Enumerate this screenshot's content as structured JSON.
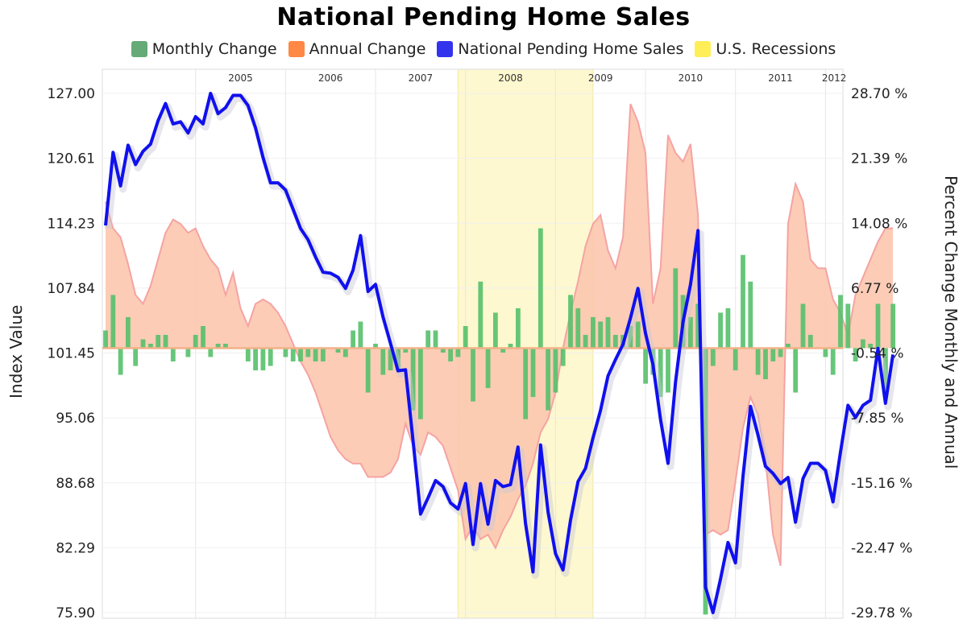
{
  "chart_data": {
    "type": "bar",
    "title": "National Pending Home Sales",
    "left_axis_label": "Index Value",
    "right_axis_label": "Percent Change Monthly and Annual",
    "left_ticks": [
      "127.00",
      "120.61",
      "114.23",
      "107.84",
      "101.45",
      "95.06",
      "88.68",
      "82.29",
      "75.90"
    ],
    "right_ticks": [
      "28.70 %",
      "21.39 %",
      "14.08 %",
      "6.77 %",
      "-0.54 %",
      "-7.85 %",
      "-15.16 %",
      "-22.47 %",
      "-29.78 %"
    ],
    "left_ylim": [
      75.9,
      127.0
    ],
    "right_ylim": [
      -29.78,
      28.7
    ],
    "year_labels": [
      "2005",
      "2006",
      "2007",
      "2008",
      "2009",
      "2010",
      "2011",
      "2012"
    ],
    "legend": [
      {
        "name": "Monthly Change",
        "color": "#66aa77"
      },
      {
        "name": "Annual Change",
        "color": "#ff8844"
      },
      {
        "name": "National Pending Home Sales",
        "color": "#3333ee"
      },
      {
        "name": "U.S. Recessions",
        "color": "#ffee55"
      }
    ],
    "recession": {
      "start": "2007-12",
      "end": "2009-06"
    },
    "x_start": "2004-01",
    "x_end": "2012-03",
    "series": [
      {
        "name": "National Pending Home Sales",
        "axis": "left",
        "values": [
          114.0,
          121.2,
          117.9,
          121.9,
          120.0,
          121.3,
          122.0,
          124.3,
          126.0,
          124.0,
          124.2,
          123.1,
          124.7,
          124.0,
          127.0,
          125.0,
          125.6,
          126.8,
          126.8,
          125.8,
          123.6,
          120.7,
          118.2,
          118.2,
          117.5,
          115.6,
          113.7,
          112.6,
          110.9,
          109.4,
          109.3,
          108.9,
          107.8,
          109.6,
          113.0,
          107.5,
          108.2,
          105.0,
          102.4,
          99.7,
          99.8,
          92.8,
          85.6,
          87.2,
          88.9,
          88.3,
          86.7,
          86.1,
          88.6,
          82.6,
          88.6,
          84.6,
          88.9,
          88.3,
          88.5,
          92.2,
          84.7,
          79.9,
          92.4,
          85.8,
          81.7,
          80.1,
          85.0,
          88.8,
          90.1,
          93.1,
          95.8,
          99.2,
          100.8,
          102.3,
          104.9,
          107.8,
          103.4,
          100.3,
          94.9,
          90.6,
          98.6,
          104.5,
          108.2,
          113.5,
          78.4,
          75.9,
          79.2,
          82.8,
          80.8,
          89.3,
          96.2,
          93.4,
          90.3,
          89.6,
          88.6,
          89.2,
          84.8,
          89.1,
          90.6,
          90.6,
          89.9,
          86.8,
          91.7,
          96.3,
          95.1,
          96.3,
          96.8,
          101.9,
          96.5,
          101.3
        ]
      },
      {
        "name": "Monthly Change",
        "axis": "right",
        "values": [
          2.0,
          6.0,
          -3.0,
          3.5,
          -2.0,
          1.0,
          0.5,
          1.5,
          1.5,
          -1.5,
          0.0,
          -1.0,
          1.5,
          2.5,
          -1.0,
          0.5,
          0.5,
          0.0,
          0.0,
          -1.5,
          -2.5,
          -2.5,
          -2.0,
          0.0,
          -1.0,
          -1.5,
          -1.5,
          -1.0,
          -1.5,
          -1.5,
          0.0,
          -0.5,
          -1.0,
          2.0,
          3.0,
          -5.0,
          0.5,
          -3.0,
          -2.5,
          -2.5,
          -0.5,
          -7.0,
          -8.0,
          2.0,
          2.0,
          -0.5,
          -1.5,
          -1.0,
          2.5,
          -6.0,
          7.5,
          -4.5,
          4.0,
          -0.5,
          0.5,
          4.5,
          -8.0,
          -5.5,
          13.5,
          -7.0,
          -5.0,
          -2.0,
          6.0,
          4.5,
          1.5,
          3.5,
          3.0,
          3.5,
          1.5,
          1.5,
          2.5,
          3.0,
          -4.0,
          -3.0,
          -5.5,
          -5.0,
          9.0,
          6.0,
          3.5,
          5.0,
          -30.0,
          -2.0,
          4.0,
          4.5,
          -2.5,
          10.5,
          7.5,
          -3.0,
          -3.5,
          -1.5,
          -1.0,
          0.5,
          -5.0,
          5.0,
          1.5,
          0.0,
          -1.0,
          -3.0,
          6.0,
          5.0,
          -1.5,
          1.0,
          0.5,
          5.0,
          -5.5,
          5.0
        ]
      },
      {
        "name": "Annual Change",
        "axis": "right",
        "values": [
          16.5,
          13.5,
          12.5,
          9.5,
          6.0,
          5.0,
          7.0,
          10.0,
          13.0,
          14.5,
          14.0,
          13.0,
          13.5,
          11.5,
          10.0,
          9.0,
          6.0,
          8.5,
          4.5,
          2.5,
          5.0,
          5.5,
          5.0,
          4.0,
          2.5,
          0.5,
          -1.5,
          -3.0,
          -5.0,
          -7.5,
          -10.0,
          -11.5,
          -12.5,
          -13.0,
          -13.0,
          -14.5,
          -14.5,
          -14.5,
          -14.0,
          -12.5,
          -8.5,
          -11.0,
          -12.0,
          -9.5,
          -10.0,
          -11.0,
          -13.5,
          -16.0,
          -21.5,
          -20.0,
          -21.5,
          -21.0,
          -22.5,
          -20.5,
          -19.0,
          -17.0,
          -15.5,
          -13.0,
          -9.5,
          -8.0,
          -5.0,
          0.0,
          4.0,
          7.5,
          11.5,
          14.0,
          15.0,
          11.0,
          9.0,
          12.5,
          27.5,
          25.5,
          22.0,
          5.0,
          9.0,
          24.0,
          22.0,
          21.0,
          23.0,
          15.0,
          -21.0,
          -20.5,
          -21.0,
          -20.5,
          -15.0,
          -9.0,
          -5.5,
          -7.5,
          -12.5,
          -21.0,
          -24.5,
          14.0,
          18.5,
          16.5,
          10.0,
          9.0,
          9.0,
          5.5,
          4.0,
          1.5,
          6.0,
          8.0,
          10.0,
          12.0,
          13.5,
          13.5
        ]
      }
    ]
  }
}
